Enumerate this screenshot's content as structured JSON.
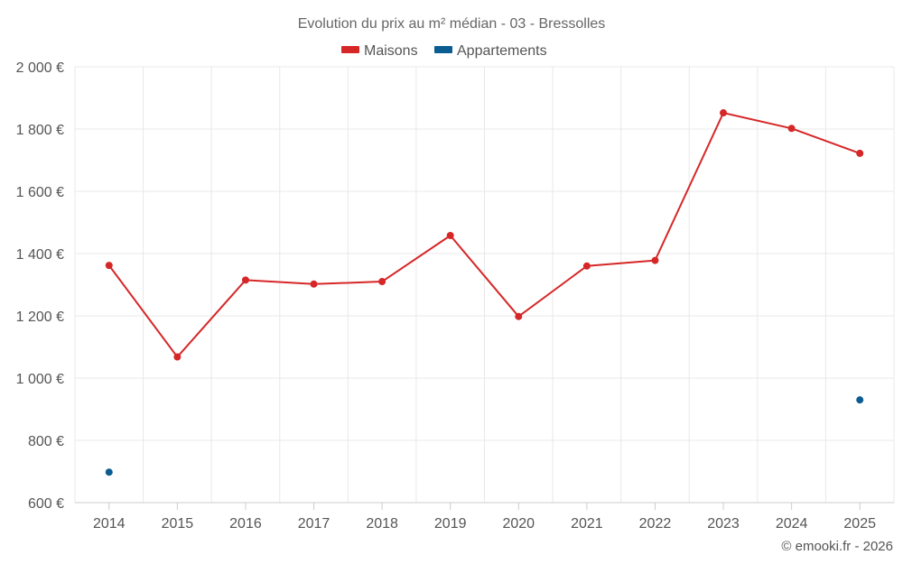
{
  "chart_data": {
    "type": "line",
    "title": "Evolution du prix au m² médian - 03 - Bressolles",
    "credit": "© emooki.fr - 2026",
    "categories": [
      "2014",
      "2015",
      "2016",
      "2017",
      "2018",
      "2019",
      "2020",
      "2021",
      "2022",
      "2023",
      "2024",
      "2025"
    ],
    "ylim": [
      600,
      2000
    ],
    "yticks": [
      600,
      800,
      1000,
      1200,
      1400,
      1600,
      1800,
      2000
    ],
    "ytick_labels": [
      "600 €",
      "800 €",
      "1 000 €",
      "1 200 €",
      "1 400 €",
      "1 600 €",
      "1 800 €",
      "2 000 €"
    ],
    "grid": true,
    "legend_position": "top-center",
    "series": [
      {
        "name": "Maisons",
        "color": "#d62728",
        "values": [
          1362,
          1068,
          1315,
          1302,
          1310,
          1458,
          1198,
          1360,
          1378,
          1852,
          1802,
          1722
        ]
      },
      {
        "name": "Appartements",
        "color": "#0a5c91",
        "values": [
          698,
          null,
          null,
          null,
          null,
          null,
          null,
          null,
          null,
          null,
          null,
          930
        ]
      }
    ]
  }
}
